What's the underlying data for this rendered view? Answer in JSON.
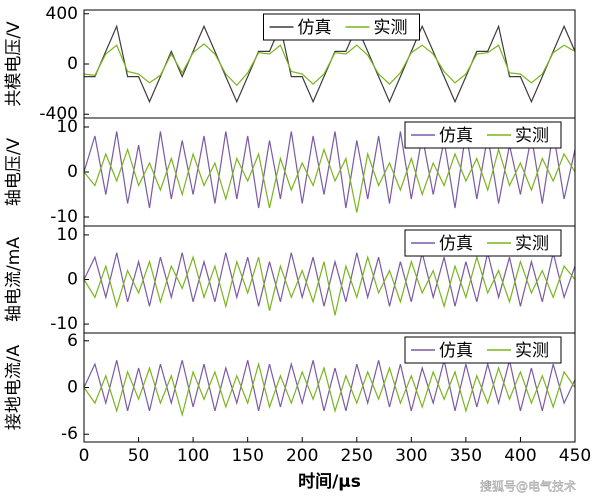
{
  "chart_data": [
    {
      "type": "line",
      "ylabel": "共模电压/V",
      "legend": "upper center",
      "x": [
        0,
        10,
        20,
        30,
        40,
        50,
        60,
        70,
        80,
        90,
        100,
        110,
        120,
        130,
        140,
        150,
        160,
        170,
        180,
        190,
        200,
        210,
        220,
        230,
        240,
        250,
        260,
        270,
        280,
        290,
        300,
        310,
        320,
        330,
        340,
        350,
        360,
        370,
        380,
        390,
        400,
        410,
        420,
        430,
        440,
        450
      ],
      "xlim": [
        0,
        450
      ],
      "ylim": [
        -430,
        430
      ],
      "yticks": [
        -400,
        0,
        400
      ],
      "series": [
        {
          "name": "仿真",
          "color": "#3c3c3c",
          "values": [
            -100,
            -100,
            100,
            300,
            -100,
            -100,
            -300,
            -100,
            100,
            -100,
            100,
            300,
            100,
            -100,
            -300,
            -100,
            100,
            100,
            300,
            -100,
            -100,
            -300,
            -100,
            100,
            100,
            300,
            100,
            -100,
            -300,
            -100,
            100,
            300,
            100,
            -100,
            -300,
            -100,
            100,
            100,
            300,
            -100,
            -100,
            -300,
            -100,
            100,
            300,
            100
          ]
        },
        {
          "name": "实测",
          "color": "#7ab51d",
          "values": [
            -80,
            -90,
            80,
            150,
            -60,
            -80,
            -150,
            -90,
            80,
            -70,
            90,
            160,
            80,
            -80,
            -170,
            -70,
            90,
            80,
            150,
            -60,
            -80,
            -160,
            -80,
            90,
            80,
            150,
            70,
            -80,
            -160,
            -70,
            90,
            150,
            80,
            -60,
            -150,
            -80,
            80,
            90,
            150,
            -70,
            -80,
            -150,
            -80,
            90,
            150,
            100
          ]
        }
      ]
    },
    {
      "type": "line",
      "ylabel": "轴电压/V",
      "legend": "upper right",
      "x": [
        0,
        10,
        20,
        30,
        40,
        50,
        60,
        70,
        80,
        90,
        100,
        110,
        120,
        130,
        140,
        150,
        160,
        170,
        180,
        190,
        200,
        210,
        220,
        230,
        240,
        250,
        260,
        270,
        280,
        290,
        300,
        310,
        320,
        330,
        340,
        350,
        360,
        370,
        380,
        390,
        400,
        410,
        420,
        430,
        440,
        450
      ],
      "xlim": [
        0,
        450
      ],
      "ylim": [
        -12,
        12
      ],
      "yticks": [
        -10,
        0,
        10
      ],
      "series": [
        {
          "name": "仿真",
          "color": "#7b5aa6",
          "values": [
            0,
            8,
            -5,
            9,
            -7,
            6,
            -8,
            9,
            -6,
            7,
            -5,
            8,
            -7,
            9,
            -6,
            8,
            -8,
            7,
            -6,
            9,
            -7,
            8,
            -5,
            9,
            -8,
            7,
            -6,
            8,
            -7,
            9,
            -6,
            8,
            -5,
            7,
            -8,
            9,
            -6,
            8,
            -7,
            6,
            -5,
            8,
            -7,
            9,
            -6,
            5
          ]
        },
        {
          "name": "实测",
          "color": "#7ab51d",
          "values": [
            0,
            -3,
            4,
            -2,
            5,
            -3,
            2,
            -4,
            3,
            -5,
            4,
            -3,
            2,
            -6,
            3,
            -2,
            4,
            -8,
            3,
            -4,
            2,
            -3,
            5,
            -2,
            3,
            -9,
            4,
            -3,
            2,
            -4,
            3,
            -5,
            2,
            -3,
            4,
            -2,
            3,
            -4,
            5,
            -3,
            2,
            -4,
            3,
            -2,
            4,
            0
          ]
        }
      ]
    },
    {
      "type": "line",
      "ylabel": "轴电流/mA",
      "legend": "upper right",
      "x": [
        0,
        10,
        20,
        30,
        40,
        50,
        60,
        70,
        80,
        90,
        100,
        110,
        120,
        130,
        140,
        150,
        160,
        170,
        180,
        190,
        200,
        210,
        220,
        230,
        240,
        250,
        260,
        270,
        280,
        290,
        300,
        310,
        320,
        330,
        340,
        350,
        360,
        370,
        380,
        390,
        400,
        410,
        420,
        430,
        440,
        450
      ],
      "xlim": [
        0,
        450
      ],
      "ylim": [
        -12,
        12
      ],
      "yticks": [
        -10,
        0,
        10
      ],
      "series": [
        {
          "name": "仿真",
          "color": "#7b5aa6",
          "values": [
            0,
            5,
            -4,
            6,
            -5,
            4,
            -6,
            5,
            -4,
            6,
            -5,
            4,
            -5,
            6,
            -4,
            5,
            -6,
            4,
            -5,
            6,
            -4,
            5,
            -6,
            4,
            -5,
            6,
            -4,
            5,
            -6,
            4,
            -5,
            6,
            -4,
            5,
            -6,
            4,
            -5,
            6,
            -4,
            5,
            -6,
            4,
            -5,
            6,
            -4,
            3
          ]
        },
        {
          "name": "实测",
          "color": "#7ab51d",
          "values": [
            0,
            -4,
            3,
            -6,
            2,
            -3,
            4,
            -5,
            3,
            -2,
            5,
            -4,
            3,
            -6,
            4,
            -3,
            5,
            -7,
            3,
            -4,
            2,
            -5,
            4,
            -8,
            3,
            -4,
            5,
            -3,
            2,
            -5,
            4,
            -3,
            2,
            -6,
            3,
            -4,
            5,
            -3,
            2,
            -5,
            4,
            -3,
            2,
            -4,
            3,
            0
          ]
        }
      ]
    },
    {
      "type": "line",
      "ylabel": "接地电流/A",
      "legend": "upper right",
      "xlabel": "时间/μs",
      "x": [
        0,
        10,
        20,
        30,
        40,
        50,
        60,
        70,
        80,
        90,
        100,
        110,
        120,
        130,
        140,
        150,
        160,
        170,
        180,
        190,
        200,
        210,
        220,
        230,
        240,
        250,
        260,
        270,
        280,
        290,
        300,
        310,
        320,
        330,
        340,
        350,
        360,
        370,
        380,
        390,
        400,
        410,
        420,
        430,
        440,
        450
      ],
      "xlim": [
        0,
        450
      ],
      "xticks": [
        0,
        50,
        100,
        150,
        200,
        250,
        300,
        350,
        400,
        450
      ],
      "ylim": [
        -7,
        7
      ],
      "yticks": [
        -6,
        0,
        6
      ],
      "series": [
        {
          "name": "仿真",
          "color": "#7b5aa6",
          "values": [
            0,
            3,
            -2,
            3.5,
            -3,
            2.5,
            -3,
            3,
            -2,
            3.5,
            -2.5,
            3,
            -3,
            2.5,
            -2,
            3.5,
            -3,
            3,
            -2.5,
            3,
            -2,
            3.5,
            -3,
            2.5,
            -3,
            3,
            -2,
            3.5,
            -2.5,
            3,
            -3,
            2.5,
            -2,
            3.5,
            -3,
            3,
            -2.5,
            3,
            -2,
            3.5,
            -3,
            2.5,
            -3,
            3,
            -2,
            1
          ]
        },
        {
          "name": "实测",
          "color": "#7ab51d",
          "values": [
            0,
            -2,
            1.5,
            -3,
            2,
            -1.5,
            2.5,
            -2,
            1.5,
            -3.5,
            2,
            -1.5,
            2,
            -2.5,
            1.5,
            -2,
            3,
            -2.5,
            1.5,
            -2,
            2,
            -1.5,
            2.5,
            -3,
            1.5,
            -2,
            2,
            -1.5,
            2.5,
            -2,
            1.5,
            -2.5,
            2,
            -1.5,
            2,
            -3,
            1.5,
            -2,
            2.5,
            -1.5,
            2,
            -2,
            1.5,
            -2.5,
            2,
            0
          ]
        }
      ]
    }
  ],
  "watermark": "搜狐号@电气技术"
}
